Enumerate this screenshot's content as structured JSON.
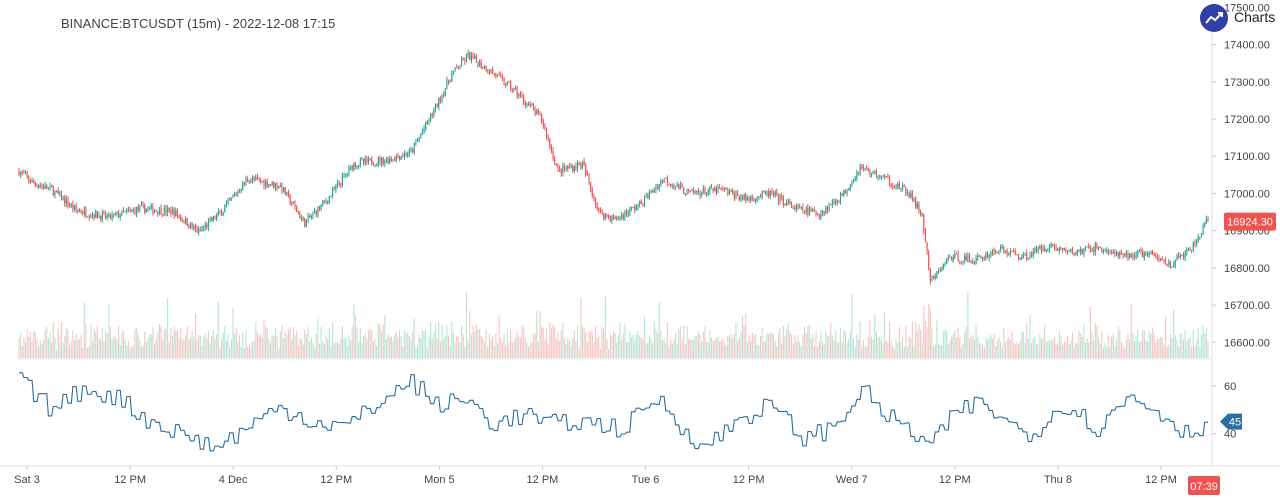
{
  "header": {
    "symbol_title": "BINANCE:BTCUSDT (15m) - 2022-12-08 17:15",
    "brand_text": "Charts p"
  },
  "colors": {
    "up": "#26a69a",
    "down": "#ef5350",
    "up_volume": "#b7e6d8",
    "down_volume": "#f7c6c4",
    "indicator_line": "#2a6fa0",
    "price_tag": "#ef5350",
    "indicator_tag": "#2a6fa0",
    "brand": "#2f3fa3"
  },
  "chart_data": {
    "type": "candlestick",
    "interval": "15m",
    "x_tick_labels": [
      "Sat 3",
      "12 PM",
      "4 Dec",
      "12 PM",
      "Mon 5",
      "12 PM",
      "Tue 6",
      "12 PM",
      "Wed 7",
      "12 PM",
      "Thu 8",
      "12 PM"
    ],
    "y_ticks": [
      16600,
      16700,
      16800,
      16900,
      17000,
      17100,
      17200,
      17300,
      17400,
      17500
    ],
    "y_tick_labels": [
      "16600.00",
      "16700.00",
      "16800.00",
      "16900.00",
      "17000.00",
      "17100.00",
      "17200.00",
      "17300.00",
      "17400.00",
      "17500.00"
    ],
    "ylim": [
      16555,
      17520
    ],
    "last_price": "16924.30",
    "countdown": "07:39",
    "close_anchors": [
      [
        0,
        17060
      ],
      [
        8,
        17030
      ],
      [
        20,
        17010
      ],
      [
        35,
        16955
      ],
      [
        55,
        16935
      ],
      [
        75,
        16960
      ],
      [
        95,
        16950
      ],
      [
        110,
        16895
      ],
      [
        125,
        16955
      ],
      [
        140,
        17040
      ],
      [
        160,
        17020
      ],
      [
        175,
        16920
      ],
      [
        190,
        16990
      ],
      [
        205,
        17080
      ],
      [
        225,
        17090
      ],
      [
        240,
        17110
      ],
      [
        255,
        17230
      ],
      [
        265,
        17320
      ],
      [
        275,
        17370
      ],
      [
        290,
        17325
      ],
      [
        305,
        17270
      ],
      [
        320,
        17200
      ],
      [
        330,
        17060
      ],
      [
        345,
        17080
      ],
      [
        355,
        16950
      ],
      [
        365,
        16930
      ],
      [
        380,
        16970
      ],
      [
        395,
        17040
      ],
      [
        410,
        17000
      ],
      [
        430,
        17010
      ],
      [
        445,
        16985
      ],
      [
        460,
        17000
      ],
      [
        475,
        16960
      ],
      [
        490,
        16945
      ],
      [
        505,
        17000
      ],
      [
        515,
        17070
      ],
      [
        530,
        17040
      ],
      [
        545,
        17000
      ],
      [
        553,
        16940
      ],
      [
        558,
        16760
      ],
      [
        570,
        16830
      ],
      [
        585,
        16820
      ],
      [
        600,
        16850
      ],
      [
        615,
        16830
      ],
      [
        630,
        16860
      ],
      [
        645,
        16840
      ],
      [
        660,
        16855
      ],
      [
        675,
        16830
      ],
      [
        690,
        16840
      ],
      [
        705,
        16810
      ],
      [
        718,
        16850
      ],
      [
        728,
        16930
      ]
    ],
    "volume": {
      "max": 260
    },
    "indicator": {
      "y_ticks": [
        40,
        60
      ],
      "ylim": [
        29,
        67
      ],
      "last_value": "45",
      "anchors": [
        [
          0,
          62
        ],
        [
          20,
          50
        ],
        [
          40,
          59
        ],
        [
          60,
          55
        ],
        [
          80,
          45
        ],
        [
          100,
          40
        ],
        [
          120,
          34
        ],
        [
          140,
          43
        ],
        [
          160,
          51
        ],
        [
          180,
          45
        ],
        [
          200,
          43
        ],
        [
          220,
          53
        ],
        [
          240,
          62
        ],
        [
          255,
          52
        ],
        [
          275,
          54
        ],
        [
          290,
          44
        ],
        [
          310,
          48
        ],
        [
          325,
          44
        ],
        [
          345,
          45
        ],
        [
          370,
          42
        ],
        [
          390,
          55
        ],
        [
          405,
          43
        ],
        [
          420,
          34
        ],
        [
          440,
          46
        ],
        [
          460,
          52
        ],
        [
          480,
          38
        ],
        [
          500,
          43
        ],
        [
          515,
          59
        ],
        [
          530,
          48
        ],
        [
          545,
          41
        ],
        [
          558,
          35
        ],
        [
          575,
          50
        ],
        [
          590,
          53
        ],
        [
          605,
          44
        ],
        [
          620,
          40
        ],
        [
          640,
          53
        ],
        [
          660,
          42
        ],
        [
          680,
          56
        ],
        [
          700,
          48
        ],
        [
          715,
          40
        ],
        [
          728,
          45
        ]
      ]
    }
  }
}
